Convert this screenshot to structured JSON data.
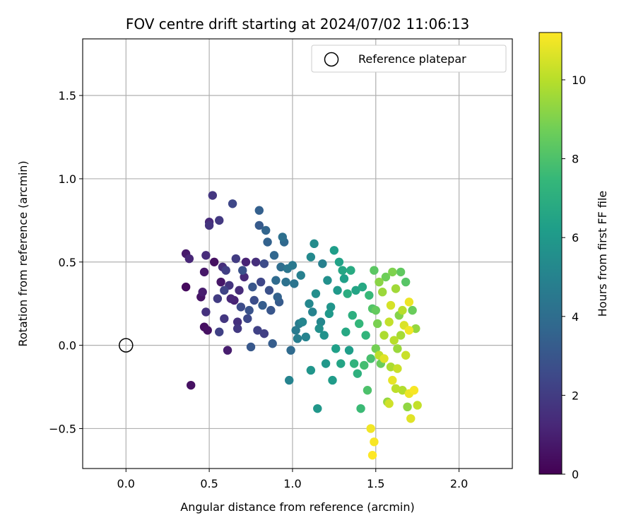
{
  "chart_data": {
    "type": "scatter",
    "title": "FOV centre drift starting at 2024/07/02 11:06:13",
    "xlabel": "Angular distance from reference (arcmin)",
    "ylabel": "Rotation from reference (arcmin)",
    "xlim": [
      -0.26,
      2.32
    ],
    "ylim": [
      -0.74,
      1.84
    ],
    "x_ticks": [
      "0.0",
      "0.5",
      "1.0",
      "1.5",
      "2.0"
    ],
    "x_tick_values": [
      0,
      0.5,
      1.0,
      1.5,
      2.0
    ],
    "y_ticks": [
      "−0.5",
      "0.0",
      "0.5",
      "1.0",
      "1.5"
    ],
    "y_tick_values": [
      -0.5,
      0,
      0.5,
      1.0,
      1.5
    ],
    "grid": true,
    "legend": {
      "position": "top-right",
      "entries": [
        "Reference platepar"
      ]
    },
    "reference_point": {
      "x": 0.0,
      "y": 0.0,
      "label": "Reference platepar"
    },
    "colorbar": {
      "label": "Hours from first FF file",
      "min": 0,
      "max": 11.2,
      "ticks": [
        "0",
        "2",
        "4",
        "6",
        "8",
        "10"
      ],
      "tick_values": [
        0,
        2,
        4,
        6,
        8,
        10
      ],
      "colormap": "viridis",
      "colors": [
        "#440154",
        "#482878",
        "#3e4989",
        "#31688e",
        "#26828e",
        "#1f9e89",
        "#35b779",
        "#6ece58",
        "#b5de2b",
        "#fde725"
      ]
    },
    "points": [
      [
        0.36,
        0.35,
        0.3
      ],
      [
        0.36,
        0.55,
        0.8
      ],
      [
        0.38,
        0.52,
        1.2
      ],
      [
        0.39,
        -0.24,
        0.5
      ],
      [
        0.45,
        0.29,
        0.6
      ],
      [
        0.46,
        0.32,
        0.9
      ],
      [
        0.47,
        0.44,
        0.7
      ],
      [
        0.47,
        0.11,
        0.4
      ],
      [
        0.48,
        0.54,
        1.4
      ],
      [
        0.48,
        0.2,
        1.6
      ],
      [
        0.49,
        0.09,
        0.5
      ],
      [
        0.5,
        0.74,
        1.3
      ],
      [
        0.5,
        0.72,
        1.7
      ],
      [
        0.52,
        0.9,
        1.8
      ],
      [
        0.53,
        0.5,
        0.5
      ],
      [
        0.55,
        0.28,
        2.0
      ],
      [
        0.56,
        0.75,
        1.9
      ],
      [
        0.56,
        0.08,
        2.2
      ],
      [
        0.57,
        0.38,
        0.7
      ],
      [
        0.58,
        0.47,
        1.5
      ],
      [
        0.59,
        0.33,
        2.3
      ],
      [
        0.59,
        0.16,
        1.8
      ],
      [
        0.6,
        0.45,
        2.1
      ],
      [
        0.61,
        -0.03,
        0.9
      ],
      [
        0.62,
        0.36,
        1.7
      ],
      [
        0.63,
        0.28,
        1.2
      ],
      [
        0.64,
        0.85,
        2.4
      ],
      [
        0.65,
        0.27,
        1.1
      ],
      [
        0.66,
        0.52,
        2.0
      ],
      [
        0.67,
        0.14,
        1.6
      ],
      [
        0.67,
        0.1,
        1.9
      ],
      [
        0.68,
        0.33,
        1.4
      ],
      [
        0.69,
        0.23,
        2.6
      ],
      [
        0.7,
        0.45,
        2.8
      ],
      [
        0.71,
        0.41,
        1.3
      ],
      [
        0.72,
        0.5,
        1.1
      ],
      [
        0.73,
        0.16,
        2.5
      ],
      [
        0.74,
        0.21,
        2.9
      ],
      [
        0.75,
        -0.01,
        3.1
      ],
      [
        0.76,
        0.35,
        3.0
      ],
      [
        0.77,
        0.27,
        2.7
      ],
      [
        0.78,
        0.5,
        1.5
      ],
      [
        0.79,
        0.09,
        2.2
      ],
      [
        0.8,
        0.81,
        3.4
      ],
      [
        0.8,
        0.72,
        3.2
      ],
      [
        0.81,
        0.38,
        2.4
      ],
      [
        0.82,
        0.24,
        3.3
      ],
      [
        0.83,
        0.07,
        2.1
      ],
      [
        0.83,
        0.49,
        2.6
      ],
      [
        0.84,
        0.69,
        3.6
      ],
      [
        0.85,
        0.62,
        3.5
      ],
      [
        0.86,
        0.33,
        2.8
      ],
      [
        0.87,
        0.21,
        3.0
      ],
      [
        0.88,
        0.01,
        3.3
      ],
      [
        0.89,
        0.54,
        3.7
      ],
      [
        0.9,
        0.39,
        3.9
      ],
      [
        0.91,
        0.29,
        3.5
      ],
      [
        0.92,
        0.26,
        3.2
      ],
      [
        0.93,
        0.47,
        4.0
      ],
      [
        0.94,
        0.65,
        4.1
      ],
      [
        0.95,
        0.62,
        3.8
      ],
      [
        0.96,
        0.38,
        4.2
      ],
      [
        0.97,
        0.46,
        4.4
      ],
      [
        0.98,
        -0.21,
        5.0
      ],
      [
        0.99,
        -0.03,
        3.9
      ],
      [
        1.0,
        0.48,
        4.5
      ],
      [
        1.01,
        0.37,
        4.3
      ],
      [
        1.02,
        0.09,
        4.6
      ],
      [
        1.03,
        0.04,
        4.8
      ],
      [
        1.04,
        0.13,
        4.7
      ],
      [
        1.05,
        0.42,
        4.9
      ],
      [
        1.06,
        0.14,
        5.1
      ],
      [
        1.08,
        0.05,
        5.0
      ],
      [
        1.1,
        0.25,
        5.2
      ],
      [
        1.11,
        0.53,
        5.3
      ],
      [
        1.11,
        -0.15,
        5.8
      ],
      [
        1.12,
        0.2,
        5.0
      ],
      [
        1.13,
        0.61,
        5.4
      ],
      [
        1.14,
        0.31,
        5.5
      ],
      [
        1.15,
        -0.38,
        5.9
      ],
      [
        1.16,
        0.1,
        5.6
      ],
      [
        1.17,
        0.14,
        5.2
      ],
      [
        1.18,
        0.49,
        4.9
      ],
      [
        1.19,
        0.06,
        5.7
      ],
      [
        1.2,
        -0.11,
        5.9
      ],
      [
        1.21,
        0.39,
        5.6
      ],
      [
        1.22,
        0.19,
        6.0
      ],
      [
        1.23,
        0.23,
        5.8
      ],
      [
        1.24,
        -0.21,
        6.1
      ],
      [
        1.25,
        0.57,
        6.2
      ],
      [
        1.26,
        -0.02,
        6.3
      ],
      [
        1.27,
        0.33,
        6.0
      ],
      [
        1.28,
        0.5,
        6.4
      ],
      [
        1.29,
        -0.11,
        6.5
      ],
      [
        1.3,
        0.45,
        6.6
      ],
      [
        1.31,
        0.4,
        6.3
      ],
      [
        1.32,
        0.08,
        6.7
      ],
      [
        1.33,
        0.31,
        6.9
      ],
      [
        1.34,
        -0.03,
        6.2
      ],
      [
        1.35,
        0.45,
        6.8
      ],
      [
        1.36,
        0.18,
        7.0
      ],
      [
        1.37,
        -0.11,
        7.2
      ],
      [
        1.38,
        0.33,
        6.5
      ],
      [
        1.39,
        -0.17,
        7.1
      ],
      [
        1.4,
        0.13,
        7.4
      ],
      [
        1.41,
        -0.38,
        7.6
      ],
      [
        1.42,
        0.35,
        6.7
      ],
      [
        1.43,
        -0.12,
        7.8
      ],
      [
        1.44,
        0.06,
        7.3
      ],
      [
        1.45,
        -0.27,
        8.0
      ],
      [
        1.46,
        0.3,
        7.5
      ],
      [
        1.47,
        -0.08,
        7.9
      ],
      [
        1.48,
        0.22,
        8.1
      ],
      [
        1.49,
        0.45,
        8.3
      ],
      [
        1.5,
        0.21,
        8.5
      ],
      [
        1.5,
        -0.02,
        8.8
      ],
      [
        1.51,
        0.13,
        8.9
      ],
      [
        1.52,
        0.38,
        9.2
      ],
      [
        1.53,
        -0.11,
        8.6
      ],
      [
        1.54,
        0.32,
        9.5
      ],
      [
        1.55,
        0.06,
        9.8
      ],
      [
        1.56,
        0.41,
        8.7
      ],
      [
        1.57,
        -0.34,
        9.4
      ],
      [
        1.58,
        0.14,
        10.2
      ],
      [
        1.59,
        0.24,
        10.5
      ],
      [
        1.6,
        0.44,
        9.0
      ],
      [
        1.6,
        -0.21,
        10.8
      ],
      [
        1.61,
        0.03,
        10.0
      ],
      [
        1.62,
        0.34,
        9.6
      ],
      [
        1.63,
        -0.14,
        10.3
      ],
      [
        1.64,
        0.18,
        9.1
      ],
      [
        1.65,
        0.44,
        8.4
      ],
      [
        1.66,
        -0.27,
        9.9
      ],
      [
        1.67,
        0.12,
        10.6
      ],
      [
        1.68,
        0.38,
        8.2
      ],
      [
        1.69,
        -0.37,
        9.3
      ],
      [
        1.7,
        0.09,
        11.0
      ],
      [
        1.7,
        -0.29,
        10.9
      ],
      [
        1.71,
        -0.44,
        10.7
      ],
      [
        1.72,
        0.21,
        8.6
      ],
      [
        1.73,
        -0.27,
        11.1
      ],
      [
        1.74,
        0.1,
        9.4
      ],
      [
        1.75,
        -0.36,
        10.2
      ],
      [
        1.47,
        -0.5,
        11.0
      ],
      [
        1.49,
        -0.58,
        11.1
      ],
      [
        1.48,
        -0.66,
        11.2
      ],
      [
        1.55,
        -0.08,
        10.7
      ],
      [
        1.58,
        -0.35,
        10.4
      ],
      [
        1.62,
        -0.26,
        10.1
      ],
      [
        1.65,
        0.06,
        9.7
      ],
      [
        1.68,
        -0.06,
        10.3
      ],
      [
        1.7,
        0.26,
        10.9
      ],
      [
        1.52,
        -0.06,
        10.1
      ],
      [
        1.59,
        -0.13,
        9.8
      ],
      [
        1.66,
        0.21,
        10.0
      ],
      [
        1.63,
        -0.02,
        9.5
      ]
    ]
  }
}
